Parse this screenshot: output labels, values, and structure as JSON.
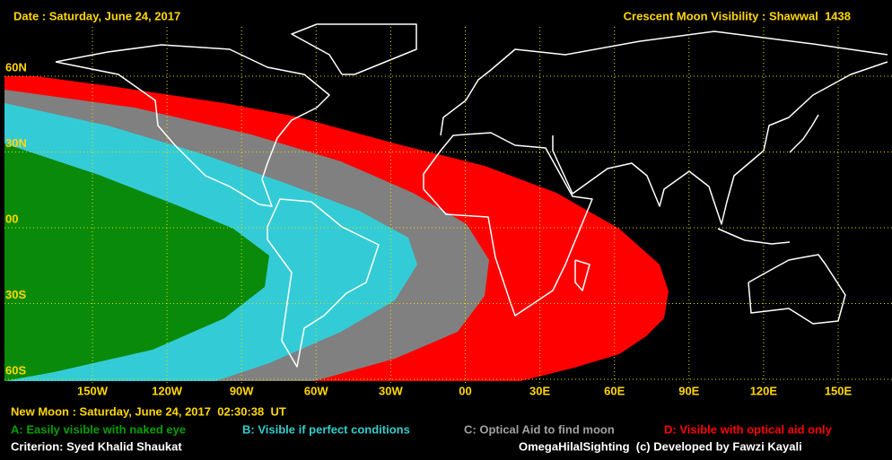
{
  "header": {
    "date": "Date : Saturday, June 24, 2017",
    "title": "Crescent Moon Visibility : Shawwal  1438"
  },
  "map": {
    "latitudes": [
      "60N",
      "30N",
      "00",
      "30S",
      "60S"
    ],
    "longitudes": [
      "150W",
      "120W",
      "90W",
      "60W",
      "30W",
      "00",
      "30E",
      "60E",
      "90E",
      "120E",
      "150E"
    ]
  },
  "new_moon": "New Moon : Saturday, June 24, 2017  02:30:38  UT",
  "legend": [
    {
      "label": "A: Easily visible with naked eye"
    },
    {
      "label": "B: Visible if perfect conditions"
    },
    {
      "label": "C: Optical Aid to find moon"
    },
    {
      "label": "D: Visible with optical aid only"
    }
  ],
  "footer": {
    "criterion": "Criterion: Syed Khalid Shaukat",
    "credit": "OmegaHilalSighting  (c) Developed by Fawzi Kayali"
  }
}
